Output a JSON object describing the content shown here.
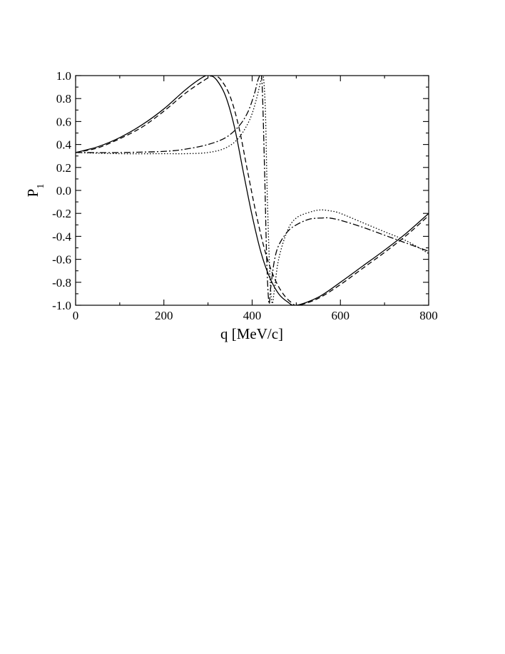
{
  "chart_data": {
    "type": "line",
    "title": "",
    "xlabel": "q [MeV/c]",
    "ylabel": "P",
    "ylabel_subscript": "1",
    "xlim": [
      0,
      800
    ],
    "ylim": [
      -1.0,
      1.0
    ],
    "xticks": [
      0,
      200,
      400,
      600,
      800
    ],
    "xtick_labels": [
      "0",
      "200",
      "400",
      "600",
      "800"
    ],
    "yticks": [
      1.0,
      0.8,
      0.6,
      0.4,
      0.2,
      0.0,
      -0.2,
      -0.4,
      -0.6,
      -0.8,
      -1.0
    ],
    "ytick_labels": [
      "1.0",
      "0.8",
      "0.6",
      "0.4",
      "0.2",
      "0.0",
      "-0.2",
      "-0.4",
      "-0.6",
      "-0.8",
      "-1.0"
    ],
    "grid": false,
    "legend": "none",
    "series": [
      {
        "style": "solid",
        "x": [
          0,
          50,
          100,
          150,
          200,
          250,
          290,
          305,
          320,
          340,
          360,
          380,
          400,
          420,
          440,
          460,
          480,
          500,
          550,
          600,
          650,
          700,
          750,
          800
        ],
        "y": [
          0.33,
          0.38,
          0.46,
          0.57,
          0.71,
          0.88,
          0.99,
          1.0,
          0.96,
          0.82,
          0.55,
          0.16,
          -0.22,
          -0.54,
          -0.76,
          -0.9,
          -0.97,
          -1.0,
          -0.93,
          -0.8,
          -0.66,
          -0.52,
          -0.37,
          -0.2
        ]
      },
      {
        "style": "dashed",
        "x": [
          0,
          50,
          100,
          150,
          200,
          250,
          300,
          315,
          330,
          350,
          370,
          390,
          410,
          430,
          450,
          470,
          490,
          505,
          550,
          600,
          650,
          700,
          750,
          800
        ],
        "y": [
          0.33,
          0.37,
          0.45,
          0.55,
          0.69,
          0.85,
          0.98,
          1.0,
          0.96,
          0.82,
          0.55,
          0.16,
          -0.22,
          -0.54,
          -0.76,
          -0.9,
          -0.98,
          -1.0,
          -0.94,
          -0.82,
          -0.68,
          -0.54,
          -0.39,
          -0.22
        ]
      },
      {
        "style": "dash-dot",
        "x": [
          0,
          100,
          200,
          250,
          300,
          340,
          370,
          390,
          405,
          415,
          422,
          428,
          433,
          438,
          442,
          450,
          460,
          480,
          500,
          530,
          560,
          575,
          600,
          650,
          700,
          750,
          800
        ],
        "y": [
          0.33,
          0.33,
          0.34,
          0.36,
          0.4,
          0.46,
          0.56,
          0.68,
          0.84,
          0.98,
          0.96,
          0.2,
          -0.6,
          -0.98,
          -0.85,
          -0.62,
          -0.48,
          -0.36,
          -0.3,
          -0.25,
          -0.24,
          -0.24,
          -0.26,
          -0.32,
          -0.39,
          -0.46,
          -0.53
        ]
      },
      {
        "style": "dotted",
        "x": [
          0,
          100,
          200,
          250,
          300,
          340,
          370,
          395,
          410,
          420,
          425,
          430,
          434,
          440,
          445,
          450,
          460,
          480,
          500,
          530,
          555,
          580,
          600,
          650,
          700,
          750,
          800
        ],
        "y": [
          0.33,
          0.32,
          0.32,
          0.32,
          0.33,
          0.37,
          0.46,
          0.62,
          0.8,
          0.96,
          1.0,
          0.7,
          0.0,
          -0.72,
          -0.98,
          -0.88,
          -0.6,
          -0.35,
          -0.24,
          -0.19,
          -0.17,
          -0.18,
          -0.2,
          -0.28,
          -0.36,
          -0.44,
          -0.55
        ]
      }
    ]
  }
}
